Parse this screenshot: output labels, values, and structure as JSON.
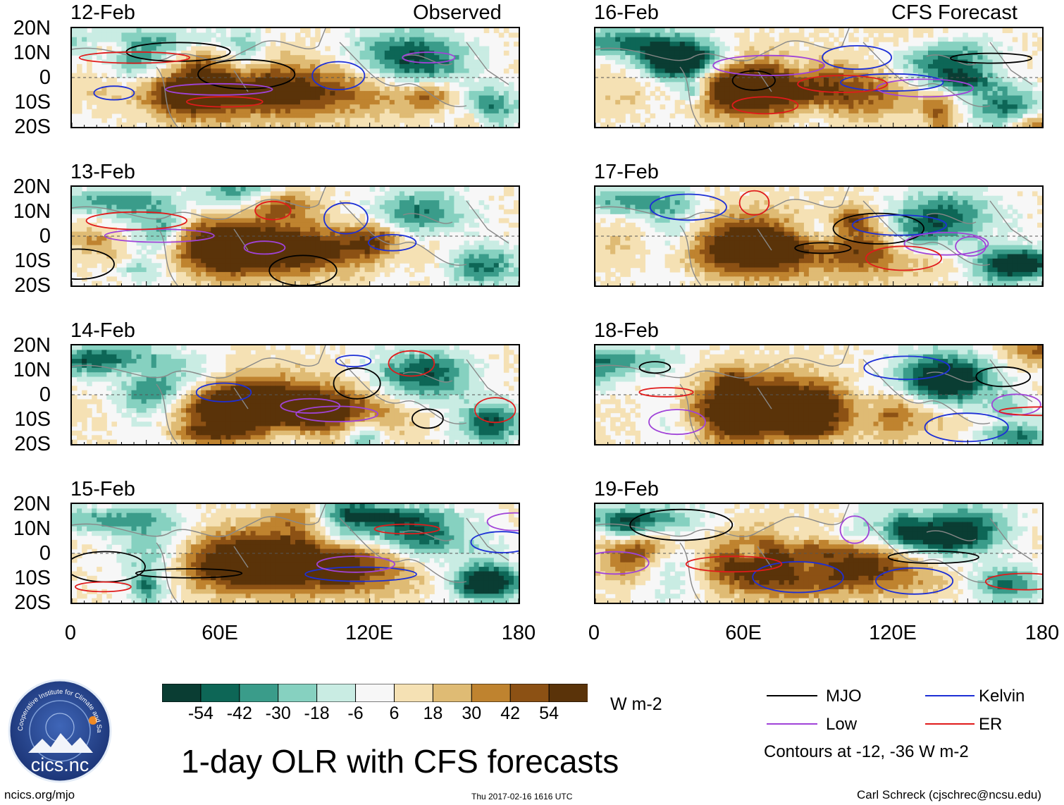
{
  "chart_data": {
    "type": "heatmap",
    "title": "1-day OLR with CFS forecasts",
    "units": "W m-2",
    "contour_note": "Contours at -12, -36 W m-2",
    "columns": [
      {
        "header": "Observed",
        "panels": [
          "12-Feb",
          "13-Feb",
          "14-Feb",
          "15-Feb"
        ]
      },
      {
        "header": "CFS Forecast",
        "panels": [
          "16-Feb",
          "17-Feb",
          "18-Feb",
          "19-Feb"
        ]
      }
    ],
    "ylabels": [
      "20N",
      "10N",
      "0",
      "10S",
      "20S"
    ],
    "ylim": [
      -20,
      20
    ],
    "xlabels": [
      "0",
      "60E",
      "120E",
      "180"
    ],
    "xlim": [
      0,
      180
    ],
    "colorbar": {
      "ticks": [
        "-54",
        "-42",
        "-30",
        "-18",
        "-6",
        "6",
        "18",
        "30",
        "42",
        "54"
      ],
      "colors": [
        "#0a3d33",
        "#0d6656",
        "#3a9c8a",
        "#86d1c0",
        "#c9ece3",
        "#f7f7f7",
        "#f5e1b4",
        "#dfbb74",
        "#bf832f",
        "#8c5114",
        "#5a3309"
      ]
    },
    "legend": [
      {
        "label": "MJO",
        "color": "#000000"
      },
      {
        "label": "Kelvin",
        "color": "#1d2fd6"
      },
      {
        "label": "Low",
        "color": "#a043d8"
      },
      {
        "label": "ER",
        "color": "#e01b1b"
      }
    ]
  },
  "footer": {
    "logo_text": "cics.nc",
    "logo_ring_text": "Cooperative Institute for Climate and Satellites",
    "link": "ncics.org/mjo",
    "timestamp": "Thu 2017-02-16 1616 UTC",
    "credit": "Carl Schreck (cjschrec@ncsu.edu)"
  }
}
